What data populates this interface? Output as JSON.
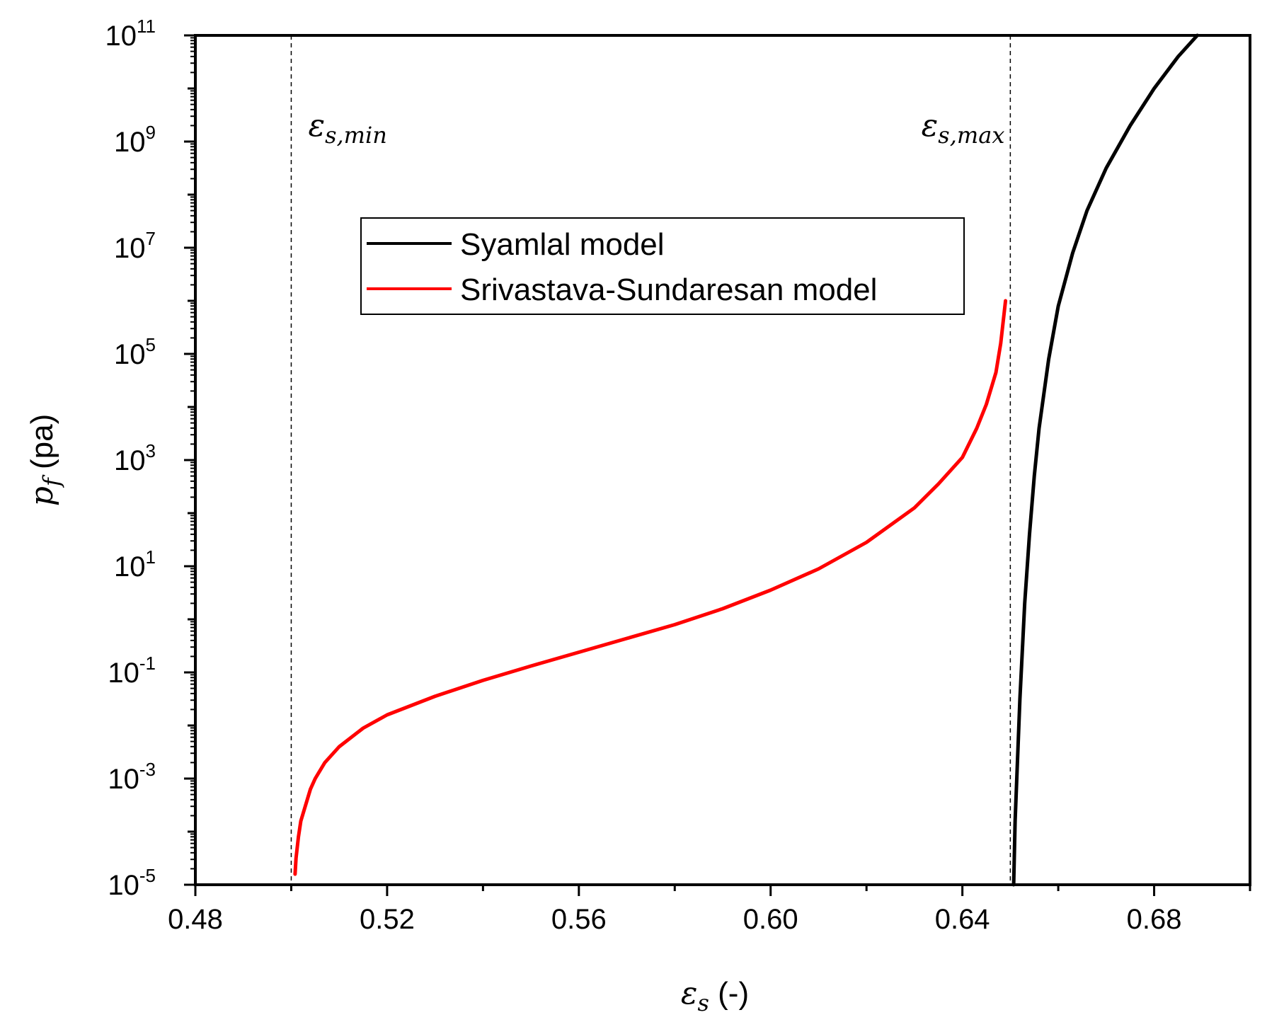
{
  "chart_data": {
    "type": "line",
    "xlabel": {
      "symbol": "ε",
      "subscript": "s",
      "unit": " (-)"
    },
    "ylabel": {
      "symbol": "p",
      "subscript": "f",
      "unit": " (pa)"
    },
    "xlim": [
      0.48,
      0.7
    ],
    "x_ticks": [
      0.48,
      0.52,
      0.56,
      0.6,
      0.64,
      0.68
    ],
    "x_tick_labels": [
      "0.48",
      "0.52",
      "0.56",
      "0.60",
      "0.64",
      "0.68"
    ],
    "y_scale": "log",
    "ylim_log10": [
      -5,
      11
    ],
    "y_ticks": [
      {
        "base": "10",
        "exp": "11",
        "log": 11
      },
      {
        "base": "10",
        "exp": "9",
        "log": 9
      },
      {
        "base": "10",
        "exp": "7",
        "log": 7
      },
      {
        "base": "10",
        "exp": "5",
        "log": 5
      },
      {
        "base": "10",
        "exp": "3",
        "log": 3
      },
      {
        "base": "10",
        "exp": "1",
        "log": 1
      },
      {
        "base": "10",
        "exp": "-1",
        "log": -1
      },
      {
        "base": "10",
        "exp": "-3",
        "log": -3
      },
      {
        "base": "10",
        "exp": "-5",
        "log": -5
      }
    ],
    "reference_lines": [
      {
        "x": 0.5,
        "symbol": "ε",
        "subscript": "s,min"
      },
      {
        "x": 0.65,
        "symbol": "ε",
        "subscript": "s,max"
      }
    ],
    "series": [
      {
        "name": "Syamlal model",
        "color": "#000000",
        "x": [
          0.6507,
          0.651,
          0.652,
          0.653,
          0.654,
          0.655,
          0.656,
          0.658,
          0.66,
          0.663,
          0.666,
          0.67,
          0.675,
          0.68,
          0.685,
          0.689
        ],
        "log10_y": [
          -5.0,
          -3.8,
          -1.5,
          0.3,
          1.6,
          2.7,
          3.6,
          4.9,
          5.9,
          6.9,
          7.7,
          8.5,
          9.3,
          10.0,
          10.6,
          11.0
        ]
      },
      {
        "name": "Srivastava-Sundaresan model",
        "color": "#ff0000",
        "x": [
          0.5008,
          0.501,
          0.5015,
          0.502,
          0.503,
          0.504,
          0.505,
          0.507,
          0.51,
          0.515,
          0.52,
          0.53,
          0.54,
          0.55,
          0.56,
          0.57,
          0.58,
          0.59,
          0.6,
          0.61,
          0.62,
          0.63,
          0.635,
          0.64,
          0.643,
          0.645,
          0.647,
          0.648,
          0.649
        ],
        "log10_y": [
          -4.8,
          -4.5,
          -4.1,
          -3.8,
          -3.5,
          -3.2,
          -3.0,
          -2.7,
          -2.4,
          -2.05,
          -1.8,
          -1.45,
          -1.15,
          -0.88,
          -0.62,
          -0.36,
          -0.1,
          0.2,
          0.55,
          0.95,
          1.45,
          2.1,
          2.55,
          3.05,
          3.6,
          4.05,
          4.65,
          5.2,
          6.0
        ]
      }
    ]
  }
}
